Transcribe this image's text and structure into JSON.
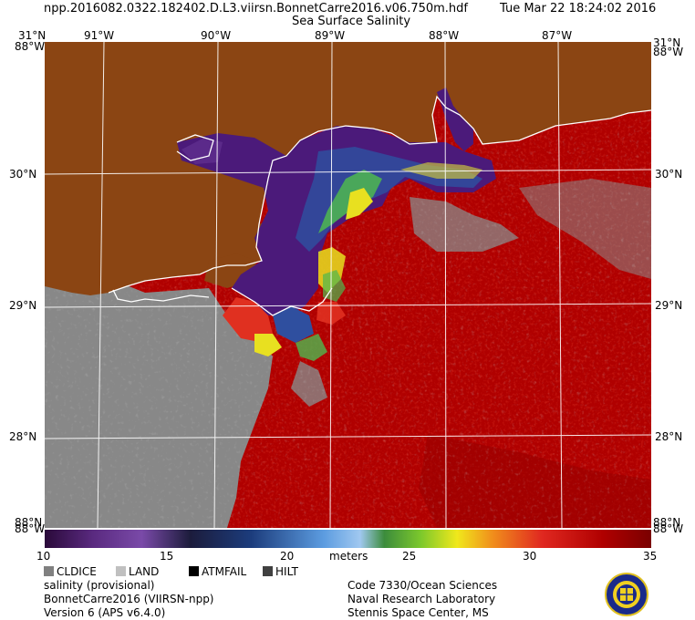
{
  "header": {
    "filename": "npp.2016082.0322.182402.D.L3.viirsn.BonnetCarre2016.v06.750m.hdf",
    "product": "Sea Surface Salinity",
    "datetime": "Tue Mar 22 18:24:02 2016"
  },
  "map": {
    "lon_ticks": [
      "91°W",
      "90°W",
      "89°W",
      "88°W",
      "87°W"
    ],
    "lat_ticks": [
      "30°N",
      "29°N",
      "28°N"
    ],
    "corner_top_left": "31°N",
    "corner_top_right": "31°N",
    "corner_left_top": "88°W",
    "corner_right_top": "88°W",
    "corner_left_bottom": "88°W",
    "corner_right_bottom": "88°W",
    "corner_bottom_left": "88°N",
    "corner_bottom_right": "88°N",
    "colors": {
      "land": "#8b4513",
      "cloud": "#888888",
      "coast": "#ffffff",
      "high_salinity": "#b40000"
    }
  },
  "colorbar": {
    "unit": "meters",
    "tick_labels": [
      "10",
      "15",
      "20",
      "25",
      "30",
      "35"
    ],
    "range": [
      10,
      35
    ]
  },
  "legend": {
    "items": [
      {
        "label": "CLDICE",
        "color": "#808080"
      },
      {
        "label": "LAND",
        "color": "#c0c0c0"
      },
      {
        "label": "ATMFAIL",
        "color": "#000000"
      },
      {
        "label": "HILT",
        "color": "#404040"
      }
    ]
  },
  "footer": {
    "left": [
      "salinity (provisional)",
      "BonnetCarre2016 (VIIRSN-npp)",
      "Version 6 (APS v6.4.0)"
    ],
    "right": [
      "Code 7330/Ocean Sciences",
      "Naval Research Laboratory",
      "Stennis Space Center, MS"
    ]
  }
}
